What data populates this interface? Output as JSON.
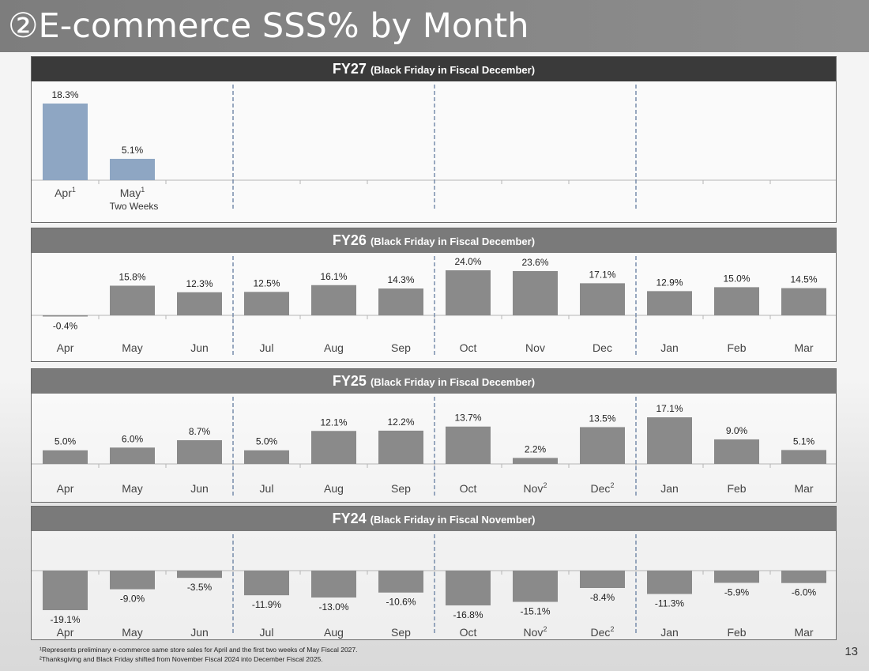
{
  "title": "②E-commerce SSS% by Month",
  "page_number": "13",
  "footnotes": [
    "¹Represents preliminary e-commerce same store sales for April and the first two weeks of May Fiscal 2027.",
    "²Thanksgiving and Black Friday shifted from November Fiscal 2024 into December Fiscal 2025."
  ],
  "colors": {
    "fy27_bar": "#8ea6c3",
    "bar": "#8a8a8a",
    "dark_header": "#3a3a3a",
    "grey_header": "#7a7a7a"
  },
  "chart_data": [
    {
      "type": "bar",
      "title": "FY27",
      "subtitle": "(Black Friday in Fiscal December)",
      "categories": [
        "Apr",
        "May"
      ],
      "category_superscripts": [
        "1",
        "1"
      ],
      "category_sublabels": [
        "",
        "Two Weeks"
      ],
      "values": [
        18.3,
        5.1
      ],
      "value_labels": [
        "18.3%",
        "5.1%"
      ],
      "total_slots": 12,
      "ylim": [
        -4,
        20
      ]
    },
    {
      "type": "bar",
      "title": "FY26",
      "subtitle": "(Black Friday in Fiscal December)",
      "categories": [
        "Apr",
        "May",
        "Jun",
        "Jul",
        "Aug",
        "Sep",
        "Oct",
        "Nov",
        "Dec",
        "Jan",
        "Feb",
        "Mar"
      ],
      "category_superscripts": [
        "",
        "",
        "",
        "",
        "",
        "",
        "",
        "",
        "",
        "",
        "",
        ""
      ],
      "values": [
        -0.4,
        15.8,
        12.3,
        12.5,
        16.1,
        14.3,
        24.0,
        23.6,
        17.1,
        12.9,
        15.0,
        14.5
      ],
      "value_labels": [
        "-0.4%",
        "15.8%",
        "12.3%",
        "12.5%",
        "16.1%",
        "14.3%",
        "24.0%",
        "23.6%",
        "17.1%",
        "12.9%",
        "15.0%",
        "14.5%"
      ],
      "total_slots": 12,
      "ylim": [
        -10,
        30
      ]
    },
    {
      "type": "bar",
      "title": "FY25",
      "subtitle": "(Black Friday in Fiscal December)",
      "categories": [
        "Apr",
        "May",
        "Jun",
        "Jul",
        "Aug",
        "Sep",
        "Oct",
        "Nov",
        "Dec",
        "Jan",
        "Feb",
        "Mar"
      ],
      "category_superscripts": [
        "",
        "",
        "",
        "",
        "",
        "",
        "",
        "2",
        "2",
        "",
        "",
        ""
      ],
      "values": [
        5.0,
        6.0,
        8.7,
        5.0,
        12.1,
        12.2,
        13.7,
        2.2,
        13.5,
        17.1,
        9.0,
        5.1
      ],
      "value_labels": [
        "5.0%",
        "6.0%",
        "8.7%",
        "5.0%",
        "12.1%",
        "12.2%",
        "13.7%",
        "2.2%",
        "13.5%",
        "17.1%",
        "9.0%",
        "5.1%"
      ],
      "total_slots": 12,
      "ylim": [
        0,
        25
      ]
    },
    {
      "type": "bar",
      "title": "FY24",
      "subtitle": "(Black Friday in Fiscal November)",
      "categories": [
        "Apr",
        "May",
        "Jun",
        "Jul",
        "Aug",
        "Sep",
        "Oct",
        "Nov",
        "Dec",
        "Jan",
        "Feb",
        "Mar"
      ],
      "category_superscripts": [
        "",
        "",
        "",
        "",
        "",
        "",
        "",
        "2",
        "2",
        "",
        "",
        ""
      ],
      "values": [
        -19.1,
        -9.0,
        -3.5,
        -11.9,
        -13.0,
        -10.6,
        -16.8,
        -15.1,
        -8.4,
        -11.3,
        -5.9,
        -6.0
      ],
      "value_labels": [
        "-19.1%",
        "-9.0%",
        "-3.5%",
        "-11.9%",
        "-13.0%",
        "-10.6%",
        "-16.8%",
        "-15.1%",
        "-8.4%",
        "-11.3%",
        "-5.9%",
        "-6.0%"
      ],
      "total_slots": 12,
      "ylim": [
        -20,
        0
      ]
    }
  ]
}
